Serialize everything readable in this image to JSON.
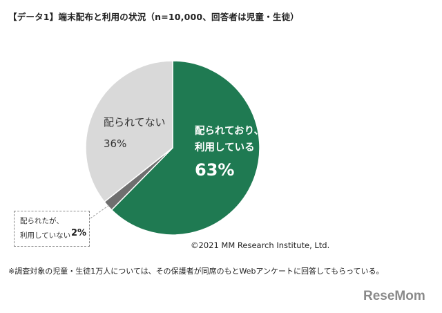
{
  "title": "【データ1】端末配布と利用の状況（n=10,000、回答者は児童・生徒）",
  "chart_data": {
    "type": "pie",
    "slices": [
      {
        "label_lines": [
          "配られており、",
          "利用している"
        ],
        "value": 63,
        "value_label": "63%",
        "color": "#1f7a52"
      },
      {
        "label_lines": [
          "配られたが、",
          "利用していない"
        ],
        "value": 2,
        "value_label": "2%",
        "color": "#6f6f6f"
      },
      {
        "label_lines": [
          "配られてない"
        ],
        "value": 36,
        "value_label": "36%",
        "color": "#d9d9d9"
      }
    ]
  },
  "copyright": "©2021 MM Research Institute, Ltd.",
  "note": "※調査対象の児童・生徒1万人については、その保護者が同席のもとWebアンケートに回答してもらっている。",
  "logo": "ReseMom"
}
